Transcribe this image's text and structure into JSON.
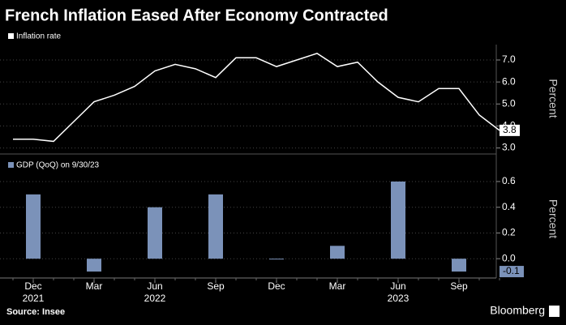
{
  "title": "French Inflation Eased After Economy Contracted",
  "source": "Source: Insee",
  "credit": "Bloomberg",
  "chart_data": [
    {
      "type": "line",
      "legend": "Inflation rate",
      "color": "#ffffff",
      "ylabel": "Percent",
      "categories": [
        null,
        null,
        null,
        null,
        null,
        null,
        null,
        null,
        null,
        null,
        null,
        null,
        null,
        null,
        null,
        null,
        null,
        null,
        null,
        null,
        null,
        null,
        null,
        null,
        null
      ],
      "values": [
        3.4,
        3.4,
        3.3,
        4.2,
        5.1,
        5.4,
        5.8,
        6.5,
        6.8,
        6.6,
        6.2,
        7.1,
        7.1,
        6.7,
        7.0,
        7.3,
        6.7,
        6.9,
        6.0,
        5.3,
        5.1,
        5.7,
        5.7,
        4.5,
        3.8
      ],
      "ylim": [
        2.8,
        7.7
      ],
      "yticks": [
        {
          "value": 3,
          "label": "3.0"
        },
        {
          "value": 4,
          "label": "4.0"
        },
        {
          "value": 5,
          "label": "5.0"
        },
        {
          "value": 6,
          "label": "6.0"
        },
        {
          "value": 7,
          "label": "7.0"
        }
      ],
      "grid": true
    },
    {
      "type": "bar",
      "legend": "GDP (QoQ) on 9/30/23",
      "color": "#7b92b9",
      "ylabel": "Percent",
      "categories": [
        "Dec",
        "Mar",
        "Jun",
        "Sep",
        "Dec",
        "Mar",
        "Jun",
        "Sep"
      ],
      "year_labels": [
        "2021",
        null,
        "2022",
        null,
        null,
        null,
        "2023",
        null
      ],
      "values": [
        0.5,
        -0.1,
        0.4,
        0.5,
        0.0,
        0.1,
        0.6,
        -0.1
      ],
      "ylim": [
        -0.15,
        0.77
      ],
      "yticks": [
        {
          "value": 0,
          "label": "0.0"
        },
        0.2,
        0.4,
        0.6
      ],
      "grid": true
    }
  ]
}
